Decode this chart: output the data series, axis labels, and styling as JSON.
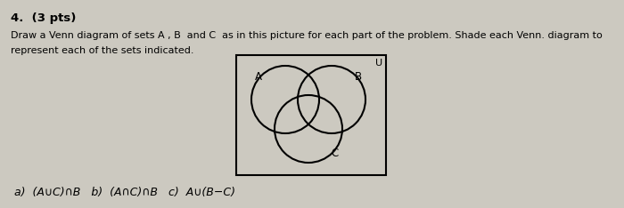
{
  "title": "4.  (3 pts)",
  "body_line1": "Draw a Venn diagram of sets A , B  and C  as in this picture for each part of the problem. Shade each Venn. diagram to",
  "body_line2": "represent each of the sets indicated.",
  "bottom_text_a": "a)  (A∪C)∩B",
  "bottom_text_b": "b)  (A∩C)∩B",
  "bottom_text_c": "c)  A∪(B−C)",
  "bg_color": "#ccc9c0",
  "label_A": "A",
  "label_B": "B",
  "label_C": "C",
  "label_U": "U"
}
